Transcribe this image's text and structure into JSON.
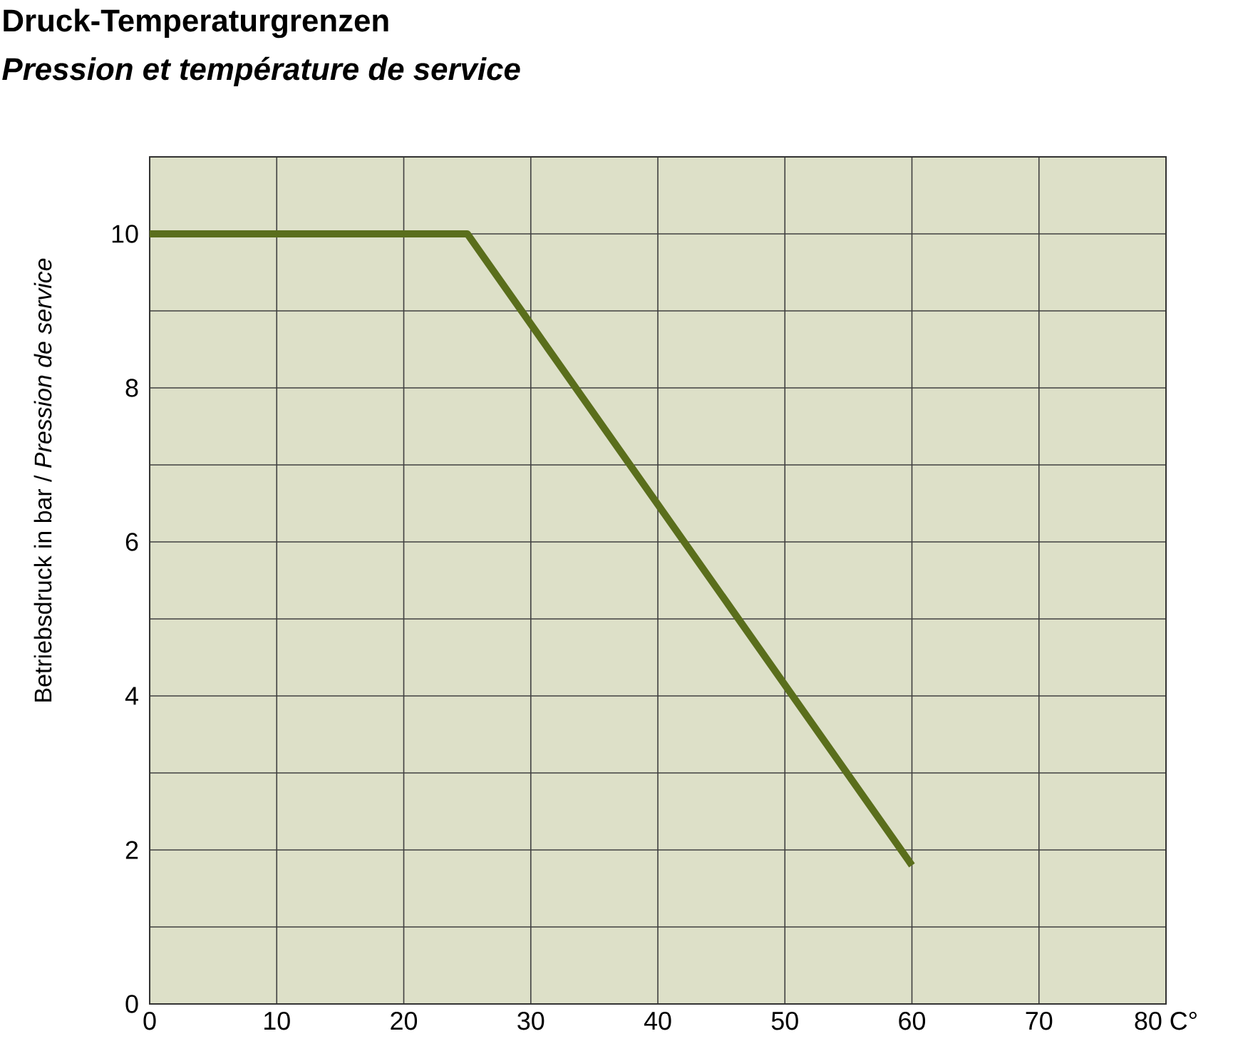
{
  "chart_data": {
    "type": "line",
    "title": "Druck-Temperaturgrenzen",
    "subtitle": "Pression et température de service",
    "ylabel": "Betriebsdruck in bar / *Pression de service*",
    "x": [
      0,
      25,
      60
    ],
    "series": [
      {
        "color": "#5a6e1c",
        "values": [
          10,
          10,
          1.8
        ]
      }
    ],
    "xlim": [
      0,
      80
    ],
    "ylim": [
      0,
      11
    ],
    "xticks": [
      0,
      10,
      20,
      30,
      40,
      50,
      60,
      70,
      {
        "value": 80,
        "label": "80 C°"
      }
    ],
    "yticks": [
      0,
      {
        "value": 1,
        "label": null
      },
      2,
      {
        "value": 3,
        "label": null
      },
      4,
      {
        "value": 5,
        "label": null
      },
      6,
      {
        "value": 7,
        "label": null
      },
      8,
      {
        "value": 9,
        "label": null
      },
      10,
      {
        "value": 11,
        "label": null
      }
    ],
    "grid": true
  }
}
